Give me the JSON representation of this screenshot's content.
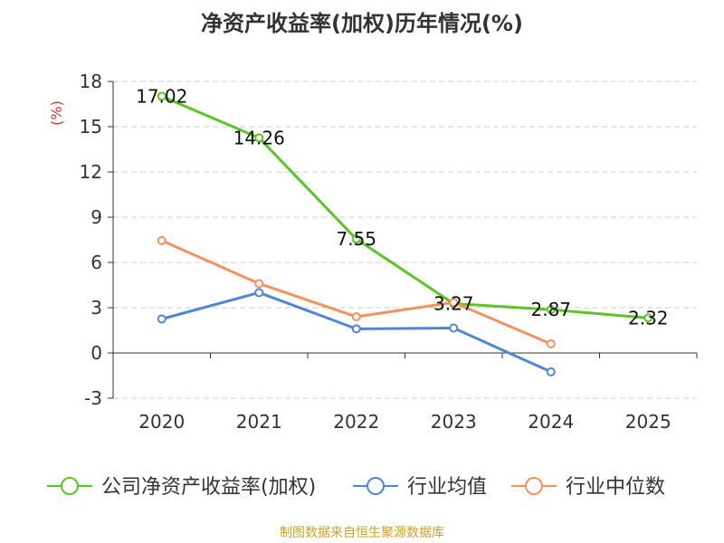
{
  "chart_data": {
    "type": "line",
    "title": "净资产收益率(加权)历年情况(%)",
    "ylabel": "(%)",
    "xlabel": "",
    "categories": [
      "2020",
      "2021",
      "2022",
      "2023",
      "2024",
      "2025"
    ],
    "ylim": [
      -3,
      18
    ],
    "yticks": [
      -3,
      0,
      3,
      6,
      9,
      12,
      15,
      18
    ],
    "grid": true,
    "legend_position": "bottom",
    "series": [
      {
        "name": "公司净资产收益率(加权)",
        "color": "#5cc424",
        "values": [
          17.02,
          14.26,
          7.55,
          3.27,
          2.87,
          2.32
        ],
        "labels": [
          "17.02",
          "14.26",
          "7.55",
          "3.27",
          "2.87",
          "2.32"
        ]
      },
      {
        "name": "行业均值",
        "color": "#4f86d9",
        "values": [
          2.25,
          4.0,
          1.6,
          1.65,
          -1.25,
          null
        ]
      },
      {
        "name": "行业中位数",
        "color": "#f5915e",
        "values": [
          7.45,
          4.6,
          2.4,
          3.35,
          0.6,
          null
        ]
      }
    ]
  },
  "source": "制图数据来自恒生聚源数据库"
}
